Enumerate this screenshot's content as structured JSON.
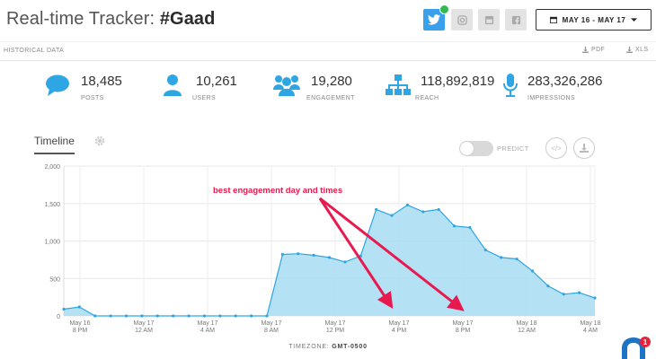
{
  "header": {
    "title_prefix": "Real-time Tracker: ",
    "title_hashtag": "#Gaad",
    "date_range": "MAY 16 - MAY 17"
  },
  "social_icons": [
    "twitter-icon",
    "instagram-icon",
    "youtube-icon",
    "facebook-icon"
  ],
  "historical": {
    "label": "HISTORICAL DATA",
    "pdf": "PDF",
    "xls": "XLS"
  },
  "stats": [
    {
      "value": "18,485",
      "label": "POSTS",
      "icon": "chat-bubble-icon"
    },
    {
      "value": "10,261",
      "label": "USERS",
      "icon": "user-icon"
    },
    {
      "value": "19,280",
      "label": "ENGAGEMENT",
      "icon": "group-icon"
    },
    {
      "value": "118,892,819",
      "label": "REACH",
      "icon": "sitemap-icon"
    },
    {
      "value": "283,326,286",
      "label": "IMPRESSIONS",
      "icon": "microphone-icon"
    }
  ],
  "timeline": {
    "tab_label": "Timeline",
    "predict_label": "PREDICT",
    "embed_label": "</>",
    "timezone_label": "TIMEZONE:",
    "timezone_value": "GMT-0500"
  },
  "colors": {
    "accent": "#2ea6e3",
    "fill": "#a8dcf3",
    "annotation": "#e8194f"
  },
  "chart_data": {
    "type": "area",
    "ylim": [
      0,
      2000
    ],
    "y_ticks": [
      "2,000",
      "1,500",
      "1,000",
      "500",
      "0"
    ],
    "x_ticks": [
      {
        "line1": "May 16",
        "line2": "8 PM"
      },
      {
        "line1": "May 17",
        "line2": "12 AM"
      },
      {
        "line1": "May 17",
        "line2": "4 AM"
      },
      {
        "line1": "May 17",
        "line2": "8 AM"
      },
      {
        "line1": "May 17",
        "line2": "12 PM"
      },
      {
        "line1": "May 17",
        "line2": "4 PM"
      },
      {
        "line1": "May 17",
        "line2": "8 PM"
      },
      {
        "line1": "May 18",
        "line2": "12 AM"
      },
      {
        "line1": "May 18",
        "line2": "4 AM"
      }
    ],
    "values": [
      90,
      120,
      0,
      0,
      0,
      0,
      0,
      0,
      0,
      0,
      0,
      0,
      0,
      0,
      820,
      830,
      810,
      780,
      720,
      800,
      1420,
      1340,
      1480,
      1390,
      1420,
      1200,
      1180,
      880,
      780,
      760,
      600,
      400,
      290,
      310,
      240
    ],
    "annotation": "best engagement day and times"
  }
}
